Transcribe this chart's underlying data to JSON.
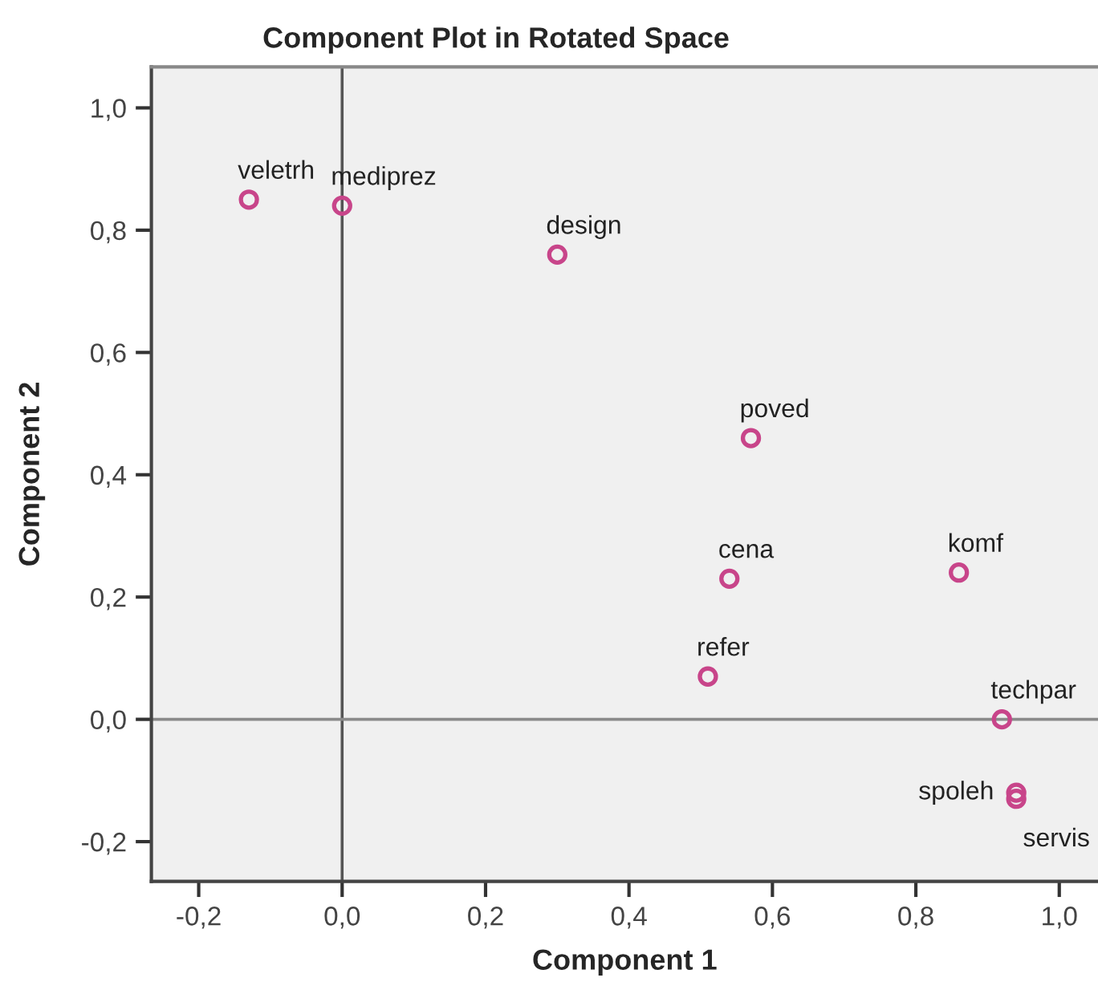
{
  "chart_data": {
    "type": "scatter",
    "title": "Component Plot in Rotated Space",
    "xlabel": "Component 1",
    "ylabel": "Component 2",
    "x": [
      -0.13,
      0.0,
      0.3,
      0.57,
      0.54,
      0.86,
      0.51,
      0.92,
      0.94,
      0.94
    ],
    "series": [
      {
        "color": "#c8458a",
        "values": [
          0.85,
          0.84,
          0.76,
          0.46,
          0.23,
          0.24,
          0.07,
          0.0,
          -0.12,
          -0.13
        ]
      }
    ],
    "marker": "circle",
    "annotations": [
      {
        "text": "veletrh",
        "x": -0.13,
        "y": 0.85
      },
      {
        "text": "mediprez",
        "x": 0.0,
        "y": 0.84
      },
      {
        "text": "design",
        "x": 0.3,
        "y": 0.76
      },
      {
        "text": "poved",
        "x": 0.57,
        "y": 0.46
      },
      {
        "text": "cena",
        "x": 0.54,
        "y": 0.23
      },
      {
        "text": "komf",
        "x": 0.86,
        "y": 0.24
      },
      {
        "text": "refer",
        "x": 0.51,
        "y": 0.07
      },
      {
        "text": "techpar",
        "x": 0.92,
        "y": 0.0
      },
      {
        "text": "spoleh",
        "x": 0.94,
        "y": -0.12
      },
      {
        "text": "servis",
        "x": 0.94,
        "y": -0.13
      }
    ],
    "xlim": [
      -0.266,
      1.054
    ],
    "ylim": [
      -0.265,
      1.067
    ],
    "xticks": [
      {
        "value": -0.2,
        "label": "-0,2"
      },
      {
        "value": 0.0,
        "label": "0,0"
      },
      {
        "value": 0.2,
        "label": "0,2"
      },
      {
        "value": 0.4,
        "label": "0,4"
      },
      {
        "value": 0.6,
        "label": "0,6"
      },
      {
        "value": 0.8,
        "label": "0,8"
      },
      {
        "value": 1.0,
        "label": "1,0"
      }
    ],
    "yticks": [
      {
        "value": -0.2,
        "label": "-0,2"
      },
      {
        "value": 0.0,
        "label": "0,0"
      },
      {
        "value": 0.2,
        "label": "0,2"
      },
      {
        "value": 0.4,
        "label": "0,4"
      },
      {
        "value": 0.6,
        "label": "0,6"
      },
      {
        "value": 0.8,
        "label": "0,8"
      },
      {
        "value": 1.0,
        "label": "1,0"
      }
    ],
    "ref_lines": [
      {
        "axis": "x",
        "value": 0,
        "color": "#555555"
      },
      {
        "axis": "y",
        "value": 0,
        "color": "#8a8a8a"
      }
    ]
  }
}
